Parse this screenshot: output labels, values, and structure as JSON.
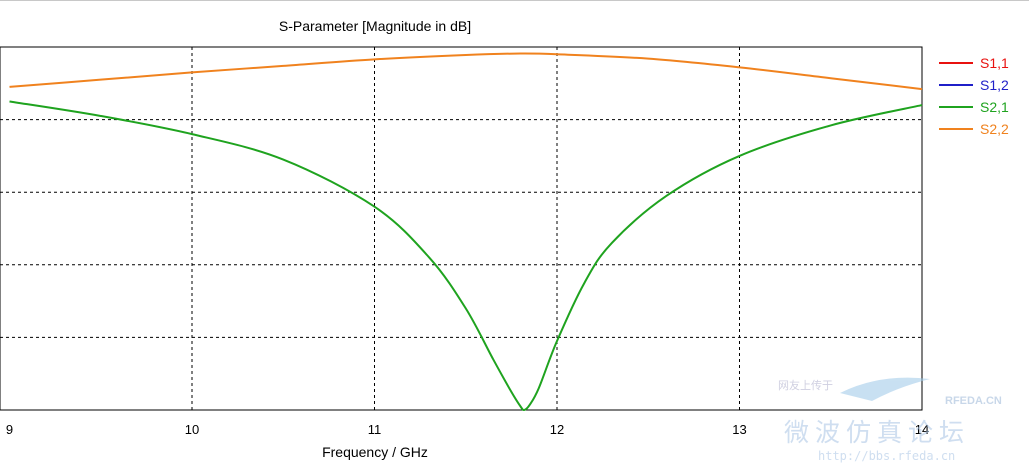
{
  "chart_data": {
    "type": "line",
    "title": "S-Parameter [Magnitude in dB]",
    "xlabel": "Frequency / GHz",
    "ylabel": "",
    "x_ticks": [
      9,
      10,
      11,
      12,
      13,
      14
    ],
    "xlim": [
      9,
      14
    ],
    "ylim": [
      -50,
      0
    ],
    "grid": true,
    "legend_position": "right",
    "series": [
      {
        "name": "S1,1",
        "color": "#e8110f",
        "visible_line": false,
        "x": [],
        "y": []
      },
      {
        "name": "S1,2",
        "color": "#1f1fc8",
        "visible_line": false,
        "x": [],
        "y": []
      },
      {
        "name": "S2,1",
        "color": "#1fa31f",
        "x": [
          9.0,
          9.5,
          10.0,
          10.5,
          11.0,
          11.3,
          11.5,
          11.65,
          11.75,
          11.8,
          11.82,
          11.85,
          11.9,
          12.0,
          12.15,
          12.3,
          12.6,
          13.0,
          13.5,
          14.0
        ],
        "y": [
          -7.5,
          -9.5,
          -12.0,
          -15.5,
          -22.0,
          -29.0,
          -36.0,
          -43.0,
          -47.5,
          -49.5,
          -50.0,
          -49.3,
          -47.0,
          -40.5,
          -32.5,
          -27.0,
          -20.5,
          -15.0,
          -10.8,
          -8.0
        ]
      },
      {
        "name": "S2,2",
        "color": "#f0821e",
        "x": [
          9.0,
          9.5,
          10.0,
          10.5,
          11.0,
          11.5,
          11.8,
          12.0,
          12.5,
          13.0,
          13.5,
          14.0
        ],
        "y": [
          -5.5,
          -4.5,
          -3.5,
          -2.6,
          -1.7,
          -1.1,
          -0.9,
          -1.0,
          -1.6,
          -2.8,
          -4.3,
          -5.8
        ]
      }
    ]
  },
  "watermark": {
    "brand": "RFEDA.CN",
    "cn_text": "微波仿真论坛",
    "cn_small": "网友上传于",
    "url": "http://bbs.rfeda.cn"
  }
}
